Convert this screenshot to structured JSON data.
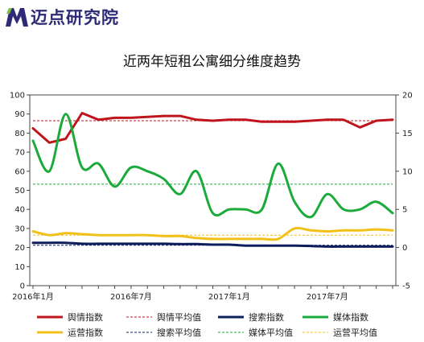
{
  "brand": {
    "logo_text": "迈点研究院",
    "logo_icon": "m-logo-icon",
    "logo_color": "#2d2a78",
    "logo_accent": "#7cc242"
  },
  "chart_data": {
    "type": "line",
    "title": "近两年短租公寓细分维度趋势",
    "xlabel": "",
    "ylabel": "",
    "x_tick_labels": [
      "2016年1月",
      "2016年7月",
      "2017年1月",
      "2017年7月"
    ],
    "x_tick_index": [
      0,
      6,
      12,
      18
    ],
    "n_points": 23,
    "y_left": {
      "range": [
        0,
        100
      ],
      "ticks": [
        0,
        10,
        20,
        30,
        40,
        50,
        60,
        70,
        80,
        90,
        100
      ]
    },
    "y_right": {
      "range": [
        -5,
        20
      ],
      "ticks": [
        -5,
        0,
        5,
        10,
        15,
        20
      ]
    },
    "series": [
      {
        "name": "舆情指数",
        "axis": "left",
        "color": "#c0141c",
        "style": "solid",
        "smooth": false,
        "values": [
          82.5,
          75,
          77,
          90.5,
          87,
          88,
          88,
          88.5,
          89,
          89,
          87,
          86.5,
          87,
          87,
          86,
          86,
          86,
          86.5,
          87,
          87,
          83,
          86.5,
          87
        ]
      },
      {
        "name": "舆情平均值",
        "axis": "left",
        "color": "#c0141c",
        "style": "dashed",
        "value": 86.5
      },
      {
        "name": "搜索指数",
        "axis": "left",
        "color": "#0c1f5c",
        "style": "solid",
        "smooth": true,
        "values": [
          22.5,
          22.5,
          22.5,
          22,
          22,
          22,
          22,
          22,
          22,
          21.8,
          21.8,
          21.5,
          21.5,
          21,
          21,
          21,
          21,
          20.8,
          20.5,
          20.5,
          20.5,
          20.5,
          20.5
        ]
      },
      {
        "name": "媒体指数",
        "axis": "right",
        "color": "#1aab3a",
        "style": "solid",
        "smooth": true,
        "values": [
          14,
          10,
          17.5,
          10.5,
          11,
          8,
          10.5,
          10,
          9,
          7,
          10,
          4.5,
          5,
          5,
          5,
          11,
          6,
          4,
          7,
          5,
          5,
          6,
          4.5
        ]
      },
      {
        "name": "运营指数",
        "axis": "left",
        "color": "#f2c018",
        "style": "solid",
        "smooth": true,
        "values": [
          28.5,
          26.5,
          27.5,
          27,
          26.5,
          26.5,
          26.5,
          26.5,
          26,
          26,
          25,
          24.5,
          24.5,
          24.5,
          24.5,
          24.5,
          30,
          29,
          28.5,
          29,
          29,
          29.5,
          29
        ]
      },
      {
        "name": "搜索平均值",
        "axis": "left",
        "color": "#0c1f5c",
        "style": "dashed",
        "value": 21.2
      },
      {
        "name": "媒体平均值",
        "axis": "right",
        "color": "#1aab3a",
        "style": "dashed",
        "value": 8.3
      },
      {
        "name": "运营平均值",
        "axis": "left",
        "color": "#f2c018",
        "style": "dashed",
        "value": 26.5
      }
    ],
    "legend_position": "bottom",
    "grid": false
  }
}
